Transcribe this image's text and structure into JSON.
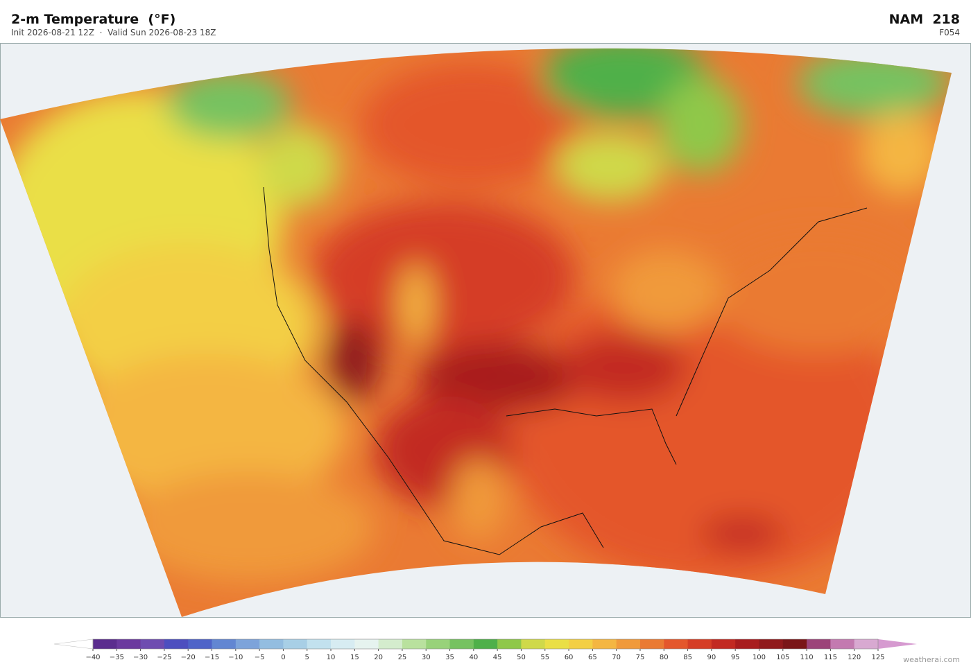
{
  "header": {
    "title": "2-m Temperature  (°F)",
    "subtitle": "Init 2026-08-21 12Z  ·  Valid Sun 2026-08-23 18Z",
    "model": "NAM  218",
    "forecast_hour": "F054"
  },
  "colorbar": {
    "ticks": [
      {
        "value": -40,
        "label": "−40"
      },
      {
        "value": -35,
        "label": "−35"
      },
      {
        "value": -30,
        "label": "−30"
      },
      {
        "value": -25,
        "label": "−25"
      },
      {
        "value": -20,
        "label": "−20"
      },
      {
        "value": -15,
        "label": "−15"
      },
      {
        "value": -10,
        "label": "−10"
      },
      {
        "value": -5,
        "label": "−5"
      },
      0,
      5,
      10,
      15,
      20,
      25,
      30,
      35,
      40,
      45,
      50,
      55,
      60,
      65,
      70,
      75,
      80,
      85,
      90,
      95,
      100,
      105,
      110,
      115,
      120,
      125
    ],
    "colors": [
      "#5b2d8e",
      "#6b3a9e",
      "#6e4cb0",
      "#4d4fbf",
      "#4f64c8",
      "#6286d2",
      "#7da3da",
      "#93bde0",
      "#a8cfe6",
      "#c2e1ee",
      "#d7ecf2",
      "#e6f3ef",
      "#d4eccd",
      "#b9e19e",
      "#98d27a",
      "#76c261",
      "#4fb04a",
      "#8fc84a",
      "#cfd94a",
      "#eadf46",
      "#f3cf45",
      "#f4b642",
      "#f09a3b",
      "#ea7a33",
      "#e4572c",
      "#d53e26",
      "#c22a22",
      "#a81d1e",
      "#901a1c",
      "#7a1618",
      "#9c4479",
      "#c37ab0",
      "#d8a9d1"
    ],
    "under_color": "#ffffff",
    "over_color": "#d69ad0"
  },
  "attribution": "weatherai.com"
}
